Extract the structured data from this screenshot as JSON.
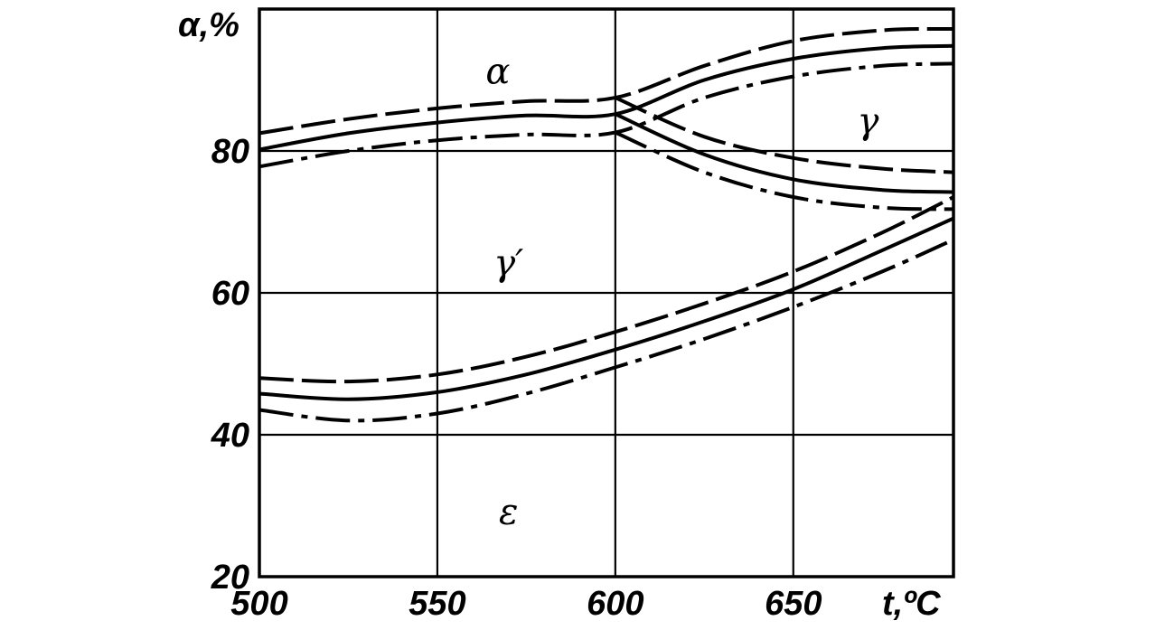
{
  "chart_data": {
    "type": "line",
    "title": "",
    "xlabel": "t,ºC",
    "ylabel": "α,%",
    "xlim": [
      500,
      695
    ],
    "ylim": [
      20,
      100
    ],
    "x_ticks": [
      "500",
      "550",
      "600",
      "650"
    ],
    "y_ticks": [
      "20",
      "40",
      "60",
      "80"
    ],
    "grid": true,
    "region_labels": [
      {
        "text": "α",
        "x": 567,
        "y": 91
      },
      {
        "text": "γ",
        "x": 671,
        "y": 84
      },
      {
        "text": "γ′",
        "x": 570,
        "y": 64
      },
      {
        "text": "ε",
        "x": 570,
        "y": 29
      }
    ],
    "series": [
      {
        "style": "dashed",
        "group": "upper",
        "x": [
          500,
          525,
          550,
          575,
          600,
          625,
          650,
          675,
          695
        ],
        "y": [
          82.5,
          84.5,
          86,
          87,
          87.5,
          92,
          95.5,
          97,
          97.2
        ]
      },
      {
        "style": "solid",
        "group": "upper",
        "x": [
          500,
          525,
          550,
          575,
          600,
          625,
          650,
          675,
          695
        ],
        "y": [
          80.2,
          82.5,
          84,
          85,
          85.2,
          90,
          93,
          94.5,
          94.8
        ]
      },
      {
        "style": "dashdot",
        "group": "upper",
        "x": [
          500,
          525,
          550,
          575,
          600,
          625,
          650,
          675,
          695
        ],
        "y": [
          77.8,
          80,
          81.5,
          82.3,
          82.6,
          87.5,
          90.5,
          92,
          92.3
        ]
      },
      {
        "style": "dashed",
        "group": "middle",
        "x": [
          600,
          625,
          650,
          675,
          695
        ],
        "y": [
          87.5,
          82,
          79,
          77.5,
          77
        ]
      },
      {
        "style": "solid",
        "group": "middle",
        "x": [
          600,
          625,
          650,
          675,
          695
        ],
        "y": [
          85.2,
          79.5,
          76,
          74.5,
          74.2
        ]
      },
      {
        "style": "dashdot",
        "group": "middle",
        "x": [
          600,
          625,
          650,
          675,
          695
        ],
        "y": [
          82.6,
          77,
          73.5,
          72,
          71.8
        ]
      },
      {
        "style": "dashed",
        "group": "lower",
        "x": [
          500,
          525,
          550,
          575,
          600,
          625,
          650,
          675,
          695
        ],
        "y": [
          48,
          47.5,
          48.5,
          51,
          54.5,
          58.5,
          63,
          68.5,
          73.5
        ]
      },
      {
        "style": "solid",
        "group": "lower",
        "x": [
          500,
          525,
          550,
          575,
          600,
          625,
          650,
          675,
          695
        ],
        "y": [
          45.8,
          45,
          46,
          48.5,
          52,
          56,
          60.5,
          66,
          70.5
        ]
      },
      {
        "style": "dashdot",
        "group": "lower",
        "x": [
          500,
          525,
          550,
          575,
          600,
          625,
          650,
          675,
          695
        ],
        "y": [
          43.5,
          42,
          43,
          45.8,
          49.5,
          53.5,
          58,
          63,
          67.5
        ]
      }
    ]
  }
}
